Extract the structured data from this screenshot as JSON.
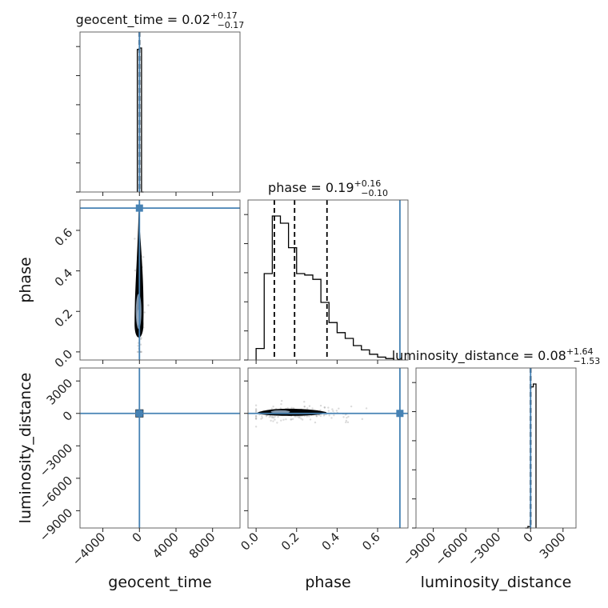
{
  "chart_data": {
    "type": "corner",
    "parameters": [
      "geocent_time",
      "phase",
      "luminosity_distance"
    ],
    "truth_color": "#4682b4",
    "grid": true,
    "panels": {
      "geocent_time": {
        "title_prefix": "geocent_time = 0.02",
        "title_sup": "+0.17",
        "title_sub": "−0.17",
        "range": [
          -6500,
          11000
        ],
        "ticks": [
          {
            "value": -4000,
            "label": "−4000"
          },
          {
            "value": 0,
            "label": "0"
          },
          {
            "value": 4000,
            "label": "4000"
          },
          {
            "value": 8000,
            "label": "8000"
          }
        ],
        "quantiles": [
          -0.15,
          0.02,
          0.19
        ],
        "truth": 0,
        "hist_edges": [
          -230,
          0,
          230,
          460
        ],
        "hist_counts": [
          0.99,
          1.0,
          0.0
        ]
      },
      "phase": {
        "title_prefix": "phase = 0.19",
        "title_sup": "+0.16",
        "title_sub": "−0.10",
        "label": "phase",
        "range": [
          -0.04,
          0.75
        ],
        "ticks": [
          {
            "value": 0.0,
            "label": "0.0"
          },
          {
            "value": 0.2,
            "label": "0.2"
          },
          {
            "value": 0.4,
            "label": "0.4"
          },
          {
            "value": 0.6,
            "label": "0.6"
          }
        ],
        "quantiles": [
          0.09,
          0.19,
          0.35
        ],
        "truth": 0.71,
        "hist_edges": [
          0.0,
          0.04,
          0.08,
          0.12,
          0.16,
          0.2,
          0.24,
          0.28,
          0.32,
          0.36,
          0.4,
          0.44,
          0.48,
          0.52,
          0.56,
          0.6,
          0.64,
          0.68
        ],
        "hist_counts": [
          0.08,
          0.6,
          1.0,
          0.95,
          0.78,
          0.6,
          0.59,
          0.56,
          0.4,
          0.26,
          0.19,
          0.15,
          0.1,
          0.07,
          0.04,
          0.02,
          0.01
        ]
      },
      "luminosity_distance": {
        "title_prefix": "luminosity_distance = 0.08",
        "title_sup": "+1.64",
        "title_sub": "−1.53",
        "label": "luminosity_distance",
        "range": [
          -10600,
          4200
        ],
        "ticks": [
          {
            "value": -9000,
            "label": "−9000"
          },
          {
            "value": -6000,
            "label": "−6000"
          },
          {
            "value": -3000,
            "label": "−3000"
          },
          {
            "value": 0,
            "label": "0"
          },
          {
            "value": 3000,
            "label": "3000"
          }
        ],
        "quantiles": [
          -1.45,
          0.08,
          1.72
        ],
        "truth": 0,
        "hist_edges": [
          -500,
          -250,
          0,
          250,
          500
        ],
        "hist_counts": [
          0.0,
          0.01,
          0.98,
          1.0
        ]
      }
    }
  }
}
